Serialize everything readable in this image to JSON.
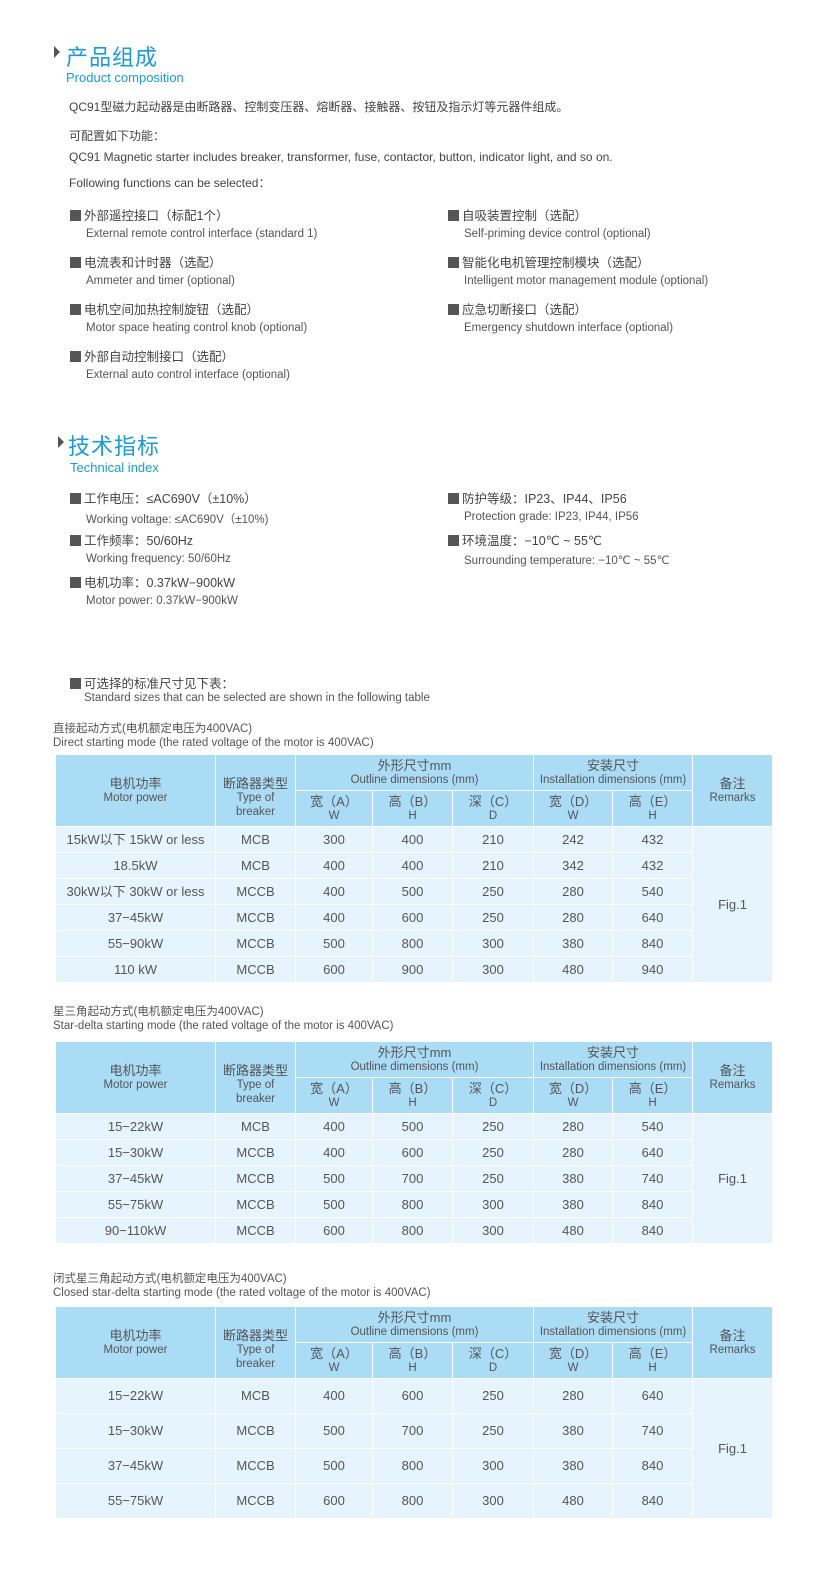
{
  "composition": {
    "title": "产品组成",
    "subtitle": "Product composition",
    "paragraphs": [
      "QC91型磁力起动器是由断路器、控制变压器、熔断器、接触器、按钮及指示灯等元器件组成。",
      "可配置如下功能：",
      "QC91 Magnetic starter includes breaker, transformer, fuse, contactor, button, indicator light, and so on.",
      "Following functions can be selected："
    ],
    "features_left": [
      {
        "cn": "外部遥控接口（标配1个）",
        "en": "External remote control interface (standard 1)"
      },
      {
        "cn": "电流表和计时器（选配）",
        "en": "Ammeter and timer (optional)"
      },
      {
        "cn": "电机空间加热控制旋钮（选配）",
        "en": "Motor space heating control knob (optional)"
      },
      {
        "cn": "外部自动控制接口（选配）",
        "en": "External auto control interface (optional)"
      }
    ],
    "features_right": [
      {
        "cn": "自吸装置控制（选配）",
        "en": "Self-priming device control (optional)"
      },
      {
        "cn": "智能化电机管理控制模块（选配）",
        "en": "Intelligent motor management module (optional)"
      },
      {
        "cn": "应急切断接口（选配）",
        "en": "Emergency shutdown interface (optional)"
      }
    ]
  },
  "technical": {
    "title": "技术指标",
    "subtitle": "Technical index",
    "left": [
      {
        "cn": "工作电压：≤AC690V（±10%）",
        "en": "Working voltage: ≤AC690V（±10%)"
      },
      {
        "cn": "工作频率：50/60Hz",
        "en": "Working frequency: 50/60Hz"
      },
      {
        "cn": "电机功率：0.37kW−900kW",
        "en": "Motor power: 0.37kW−900kW"
      }
    ],
    "right": [
      {
        "cn": "防护等级：IP23、IP44、IP56",
        "en": "Protection grade: IP23, IP44, IP56"
      },
      {
        "cn": "环境温度：−10℃ ~ 55℃",
        "en": "Surrounding temperature: −10℃ ~ 55℃"
      }
    ]
  },
  "sizes_note": {
    "cn": "可选择的标准尺寸见下表：",
    "en": "Standard sizes that can be selected are shown in the following table"
  },
  "header": {
    "power": [
      "电机功率",
      "Motor power"
    ],
    "breaker": [
      "断路器类型",
      "Type of breaker"
    ],
    "outline": [
      "外形尺寸mm",
      "Outline dimensions (mm)"
    ],
    "install": [
      "安装尺寸",
      "Installation dimensions (mm)"
    ],
    "remarks": [
      "备注",
      "Remarks"
    ],
    "sub": [
      [
        "宽（A）",
        "W"
      ],
      [
        "高（B）",
        "H"
      ],
      [
        "深（C）",
        "D"
      ],
      [
        "宽（D）",
        "W"
      ],
      [
        "高（E）",
        "H"
      ]
    ]
  },
  "tables": [
    {
      "caption_cn": "直接起动方式(电机额定电压为400VAC)",
      "caption_en": "Direct starting mode (the rated voltage of the motor is 400VAC)",
      "remark": "Fig.1",
      "rows": [
        [
          "15kW以下 15kW or less",
          "MCB",
          "300",
          "400",
          "210",
          "242",
          "432"
        ],
        [
          "18.5kW",
          "MCB",
          "400",
          "400",
          "210",
          "342",
          "432"
        ],
        [
          "30kW以下 30kW or less",
          "MCCB",
          "400",
          "500",
          "250",
          "280",
          "540"
        ],
        [
          "37−45kW",
          "MCCB",
          "400",
          "600",
          "250",
          "280",
          "640"
        ],
        [
          "55−90kW",
          "MCCB",
          "500",
          "800",
          "300",
          "380",
          "840"
        ],
        [
          "110 kW",
          "MCCB",
          "600",
          "900",
          "300",
          "480",
          "940"
        ]
      ]
    },
    {
      "caption_cn": "星三角起动方式(电机额定电压为400VAC)",
      "caption_en": "Star-delta starting mode (the rated voltage of the motor is 400VAC)",
      "remark": "Fig.1",
      "rows": [
        [
          "15−22kW",
          "MCB",
          "400",
          "500",
          "250",
          "280",
          "540"
        ],
        [
          "15−30kW",
          "MCCB",
          "400",
          "600",
          "250",
          "280",
          "640"
        ],
        [
          "37−45kW",
          "MCCB",
          "500",
          "700",
          "250",
          "380",
          "740"
        ],
        [
          "55−75kW",
          "MCCB",
          "500",
          "800",
          "300",
          "380",
          "840"
        ],
        [
          "90−110kW",
          "MCCB",
          "600",
          "800",
          "300",
          "480",
          "840"
        ]
      ]
    },
    {
      "caption_cn": "闭式星三角起动方式(电机额定电压为400VAC)",
      "caption_en": "Closed star-delta starting mode (the rated voltage of the motor is 400VAC)",
      "remark": "Fig.1",
      "rows": [
        [
          "15−22kW",
          "MCB",
          "400",
          "600",
          "250",
          "280",
          "640"
        ],
        [
          "15−30kW",
          "MCCB",
          "500",
          "700",
          "250",
          "380",
          "740"
        ],
        [
          "37−45kW",
          "MCCB",
          "500",
          "800",
          "300",
          "380",
          "840"
        ],
        [
          "55−75kW",
          "MCCB",
          "600",
          "800",
          "300",
          "480",
          "840"
        ]
      ]
    }
  ],
  "colors": {
    "accent": "#1a9bd7",
    "table_header": "#aadcf5",
    "table_body": "#e6f4fd"
  }
}
